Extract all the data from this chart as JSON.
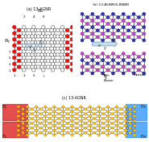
{
  "title_a": "(a) 13-AGNR",
  "title_b": "(b) 13-AGNR/6-BNNR",
  "title_c": "(c) 13-AGNR",
  "bg_color": "#ffffff",
  "red_edge": "#ee1111",
  "red_edge_ec": "#cc0000",
  "white_atom": "#ffffff",
  "gray_atom": "#aaaaaa",
  "bond_color": "#555555",
  "boron_color": "#3333bb",
  "boron_ec": "#111188",
  "nitride_color": "#cc44cc",
  "nitride_ec": "#881188",
  "small_pink_color": "#ee8888",
  "small_pink_ec": "#cc4444",
  "yellow_atom": "#ffcc00",
  "yellow_ec": "#cc8800",
  "arrow_fc": "#c5d8ea",
  "arrow_ec": "#99bbcc",
  "red_band": "#dd2222",
  "blue_band": "#3399ff"
}
